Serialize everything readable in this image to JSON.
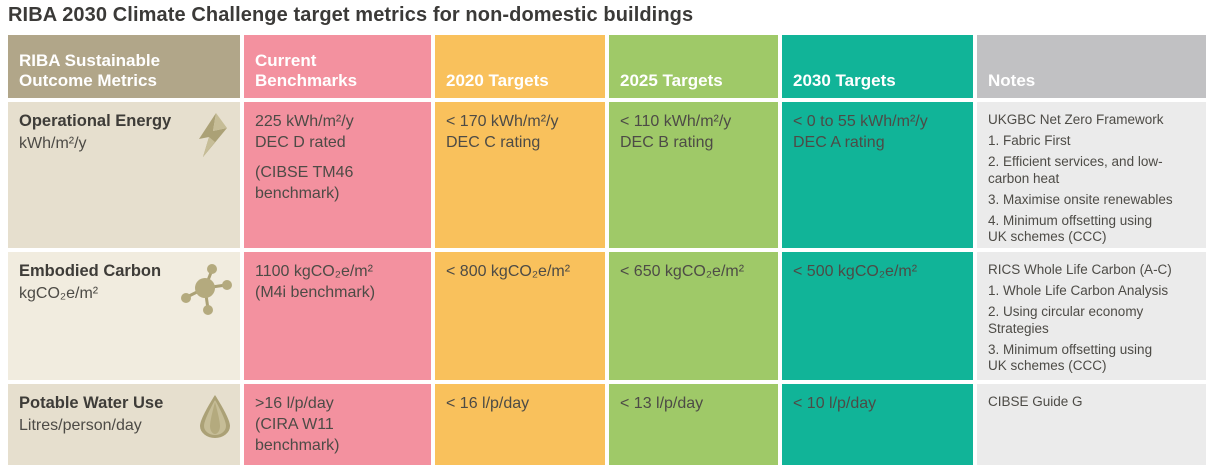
{
  "title": "RIBA 2030 Climate Challenge target metrics for non-domestic buildings",
  "columns": [
    {
      "key": "metrics",
      "label": "RIBA Sustainable\nOutcome Metrics"
    },
    {
      "key": "benchmark",
      "label": "Current\nBenchmarks"
    },
    {
      "key": "t2020",
      "label": "2020 Targets"
    },
    {
      "key": "t2025",
      "label": "2025 Targets"
    },
    {
      "key": "t2030",
      "label": "2030 Targets"
    },
    {
      "key": "notes",
      "label": "Notes"
    }
  ],
  "rows": [
    {
      "metric": "Operational Energy",
      "unit": "kWh/m²/y",
      "icon": "lightning-bolt-icon",
      "benchmark": [
        "225 kWh/m²/y\nDEC D rated",
        "(CIBSE TM46\nbenchmark)"
      ],
      "t2020": [
        "< 170 kWh/m²/y\nDEC C rating"
      ],
      "t2025": [
        "< 110 kWh/m²/y\nDEC B rating"
      ],
      "t2030": [
        "< 0 to 55 kWh/m²/y\nDEC A rating"
      ],
      "notes": [
        "UKGBC Net Zero Framework",
        "1. Fabric First",
        "2. Efficient services, and low-\ncarbon heat",
        "3. Maximise onsite renewables",
        "4. Minimum offsetting using\nUK schemes (CCC)"
      ]
    },
    {
      "metric": "Embodied Carbon",
      "unit": "kgCO₂e/m²",
      "icon": "molecule-icon",
      "benchmark": [
        "1100 kgCO₂e/m²\n(M4i benchmark)"
      ],
      "t2020": [
        "< 800 kgCO₂e/m²"
      ],
      "t2025": [
        "< 650 kgCO₂e/m²"
      ],
      "t2030": [
        "< 500 kgCO₂e/m²"
      ],
      "notes": [
        "RICS Whole Life Carbon (A-C)",
        "1. Whole Life Carbon Analysis",
        "2. Using circular economy\nStrategies",
        "3. Minimum offsetting using\nUK schemes (CCC)"
      ]
    },
    {
      "metric": "Potable Water Use",
      "unit": "Litres/person/day",
      "icon": "water-drop-icon",
      "benchmark": [
        ">16 l/p/day\n(CIRA W11\nbenchmark)"
      ],
      "t2020": [
        "< 16 l/p/day"
      ],
      "t2025": [
        "< 13 l/p/day"
      ],
      "t2030": [
        "< 10 l/p/day"
      ],
      "notes": [
        "CIBSE Guide G"
      ]
    }
  ],
  "colors": {
    "header_metrics": "#b1a689",
    "header_benchmark": "#f3919f",
    "header_2020": "#f9c15c",
    "header_2025": "#9fc968",
    "header_2030": "#11b498",
    "header_notes": "#c1c1c3",
    "cell_metrics_a": "#e6dfce",
    "cell_metrics_b": "#f1ecdf",
    "cell_benchmark": "#f3919f",
    "cell_2020": "#f9c15c",
    "cell_2025": "#9fc968",
    "cell_2030": "#11b498",
    "cell_notes": "#ebebeb",
    "icon_olive": "#aba176",
    "icon_olive_light": "#c6bd97",
    "title_text": "#3b3a38",
    "cell_text": "#4d4b46"
  }
}
